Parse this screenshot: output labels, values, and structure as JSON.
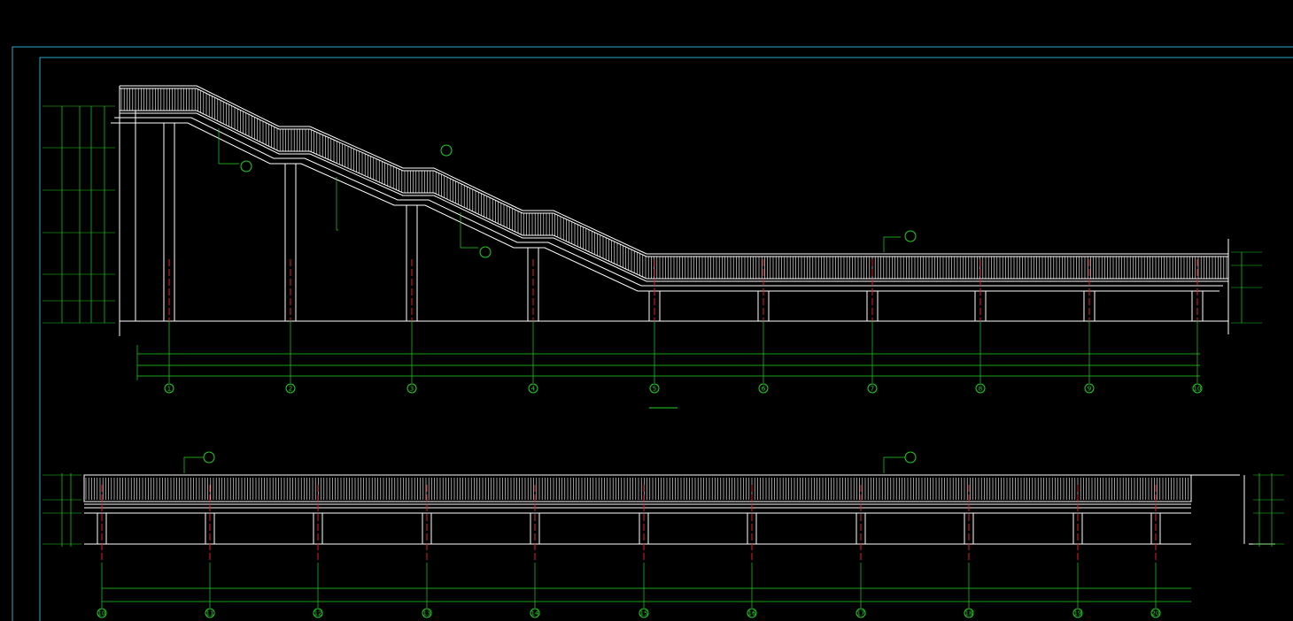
{
  "top_axes": [
    "1",
    "2",
    "3",
    "4",
    "5",
    "6",
    "7",
    "8",
    "9",
    "10"
  ],
  "bottom_axes": [
    "10",
    "11",
    "12",
    "13",
    "14",
    "15",
    "16",
    "17",
    "18",
    "19",
    "20"
  ]
}
